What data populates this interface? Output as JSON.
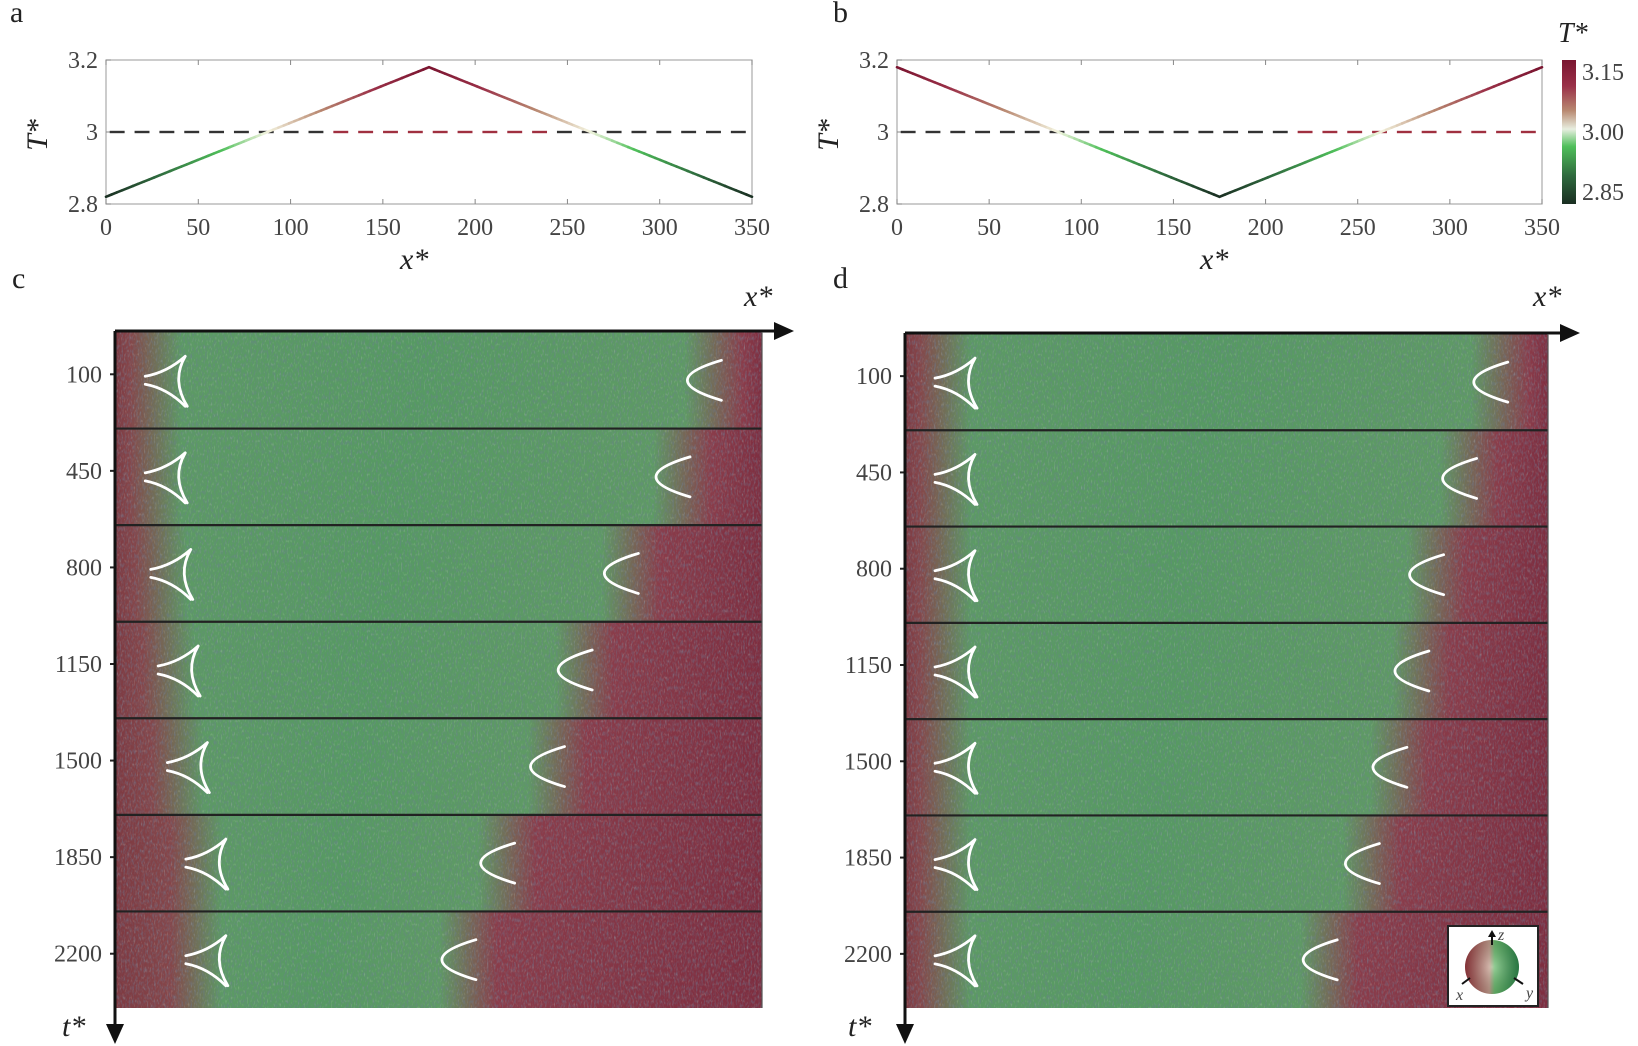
{
  "panel_labels": {
    "a": "a",
    "b": "b",
    "c": "c",
    "d": "d"
  },
  "colors": {
    "hot": "#7a1530",
    "neutral": "#f4f4e0",
    "cold": "#1a2e22",
    "green": "#4fbf5a",
    "defect": "#ffffff"
  },
  "colorbar": {
    "title": "T*",
    "ticks": [
      "3.15",
      "3.00",
      "2.85"
    ],
    "tick_values": [
      3.15,
      3.0,
      2.85
    ],
    "range": [
      2.82,
      3.18
    ]
  },
  "chart_data": [
    {
      "id": "a",
      "type": "line",
      "xlabel": "x*",
      "ylabel": "T*",
      "xlim": [
        0,
        350
      ],
      "ylim": [
        2.8,
        3.2
      ],
      "xticks": [
        "0",
        "50",
        "100",
        "150",
        "200",
        "250",
        "300",
        "350"
      ],
      "xtick_values": [
        0,
        50,
        100,
        150,
        200,
        250,
        300,
        350
      ],
      "yticks": [
        "2.8",
        "3",
        "3.2"
      ],
      "ytick_values": [
        2.8,
        3.0,
        3.2
      ],
      "series": [
        {
          "name": "temperature profile",
          "x": [
            0,
            175,
            350
          ],
          "y": [
            2.82,
            3.18,
            2.82
          ]
        }
      ],
      "reference_line": {
        "y": 3.0,
        "style": "dashed"
      }
    },
    {
      "id": "b",
      "type": "line",
      "xlabel": "x*",
      "ylabel": "T*",
      "xlim": [
        0,
        350
      ],
      "ylim": [
        2.8,
        3.2
      ],
      "xticks": [
        "0",
        "50",
        "100",
        "150",
        "200",
        "250",
        "300",
        "350"
      ],
      "xtick_values": [
        0,
        50,
        100,
        150,
        200,
        250,
        300,
        350
      ],
      "yticks": [
        "2.8",
        "3",
        "3.2"
      ],
      "ytick_values": [
        2.8,
        3.0,
        3.2
      ],
      "series": [
        {
          "name": "temperature profile",
          "x": [
            0,
            175,
            350
          ],
          "y": [
            3.18,
            2.82,
            3.18
          ]
        }
      ],
      "reference_line": {
        "y": 3.0,
        "style": "dashed"
      }
    }
  ],
  "snapshots": [
    {
      "id": "c",
      "x_axis_label": "x*",
      "t_axis_label": "t*",
      "rows": [
        {
          "t": "100",
          "left_defect_x": 18,
          "right_defect_x": 315
        },
        {
          "t": "450",
          "left_defect_x": 18,
          "right_defect_x": 298
        },
        {
          "t": "800",
          "left_defect_x": 21,
          "right_defect_x": 270
        },
        {
          "t": "1150",
          "left_defect_x": 25,
          "right_defect_x": 245
        },
        {
          "t": "1500",
          "left_defect_x": 30,
          "right_defect_x": 230
        },
        {
          "t": "1850",
          "left_defect_x": 40,
          "right_defect_x": 203
        },
        {
          "t": "2200",
          "left_defect_x": 40,
          "right_defect_x": 182
        }
      ]
    },
    {
      "id": "d",
      "x_axis_label": "x*",
      "t_axis_label": "t*",
      "rows": [
        {
          "t": "100",
          "left_defect_x": 18,
          "right_defect_x": 315
        },
        {
          "t": "450",
          "left_defect_x": 18,
          "right_defect_x": 298
        },
        {
          "t": "800",
          "left_defect_x": 18,
          "right_defect_x": 280
        },
        {
          "t": "1150",
          "left_defect_x": 18,
          "right_defect_x": 272
        },
        {
          "t": "1500",
          "left_defect_x": 18,
          "right_defect_x": 260
        },
        {
          "t": "1850",
          "left_defect_x": 18,
          "right_defect_x": 245
        },
        {
          "t": "2200",
          "left_defect_x": 18,
          "right_defect_x": 222
        }
      ]
    }
  ],
  "orientation_legend": {
    "axes": [
      "x",
      "y",
      "z"
    ]
  }
}
